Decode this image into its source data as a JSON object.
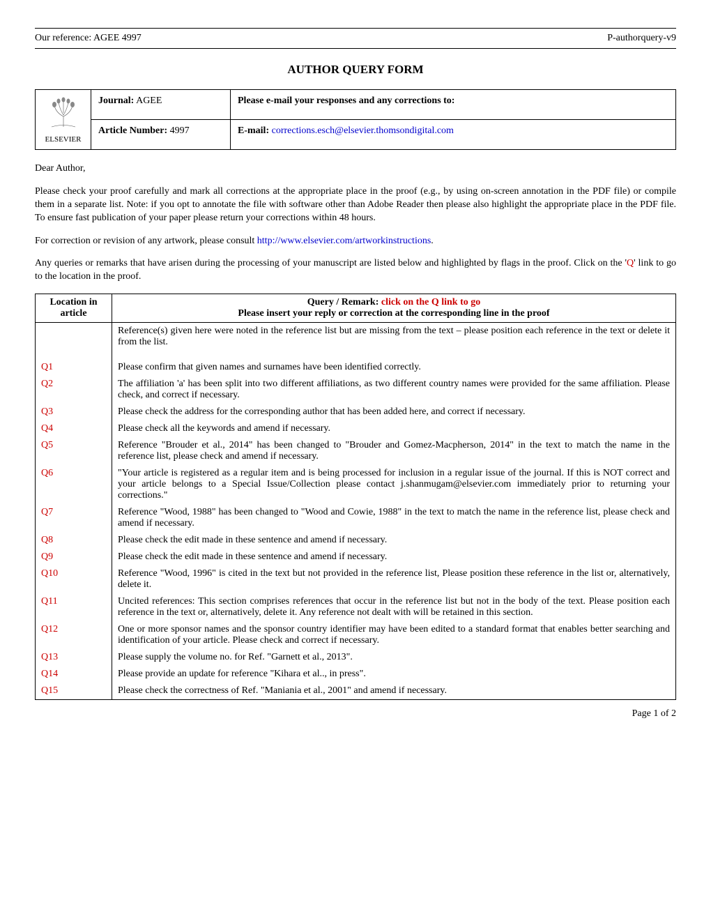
{
  "header": {
    "reference_label": "Our reference: AGEE 4997",
    "version_label": "P-authorquery-v9"
  },
  "title": "AUTHOR QUERY FORM",
  "logo_label": "ELSEVIER",
  "info_table": {
    "journal_label": "Journal:",
    "journal_value": "AGEE",
    "article_number_label": "Article Number:",
    "article_number_value": "4997",
    "response_label": "Please e-mail your responses and any corrections to:",
    "email_label": "E-mail:",
    "email_value": "corrections.esch@elsevier.thomsondigital.com"
  },
  "salutation": "Dear Author,",
  "para1": "Please check your proof carefully and mark all corrections at the appropriate place in the proof (e.g., by using on-screen annotation in the PDF file) or compile them in a separate list. Note: if you opt to annotate the file with software other than Adobe Reader then please also highlight the appropriate place in the PDF file. To ensure fast publication of your paper please return your corrections within 48 hours.",
  "para2_pre": "For correction or revision of any artwork, please consult ",
  "para2_link": "http://www.elsevier.com/artworkinstructions",
  "para2_post": ".",
  "para3_pre": "Any queries or remarks that have arisen during the processing of your manuscript are listed below and highlighted by flags in the proof. Click on the '",
  "para3_q": "Q",
  "para3_post": "' link to go to the location in the proof.",
  "query_table": {
    "header_loc_line1": "Location in",
    "header_loc_line2": "article",
    "header_query_line1_pre": "Query / Remark: ",
    "header_query_line1_red": "click on the Q link to go",
    "header_query_line2": "Please insert your reply or correction at the corresponding line in the proof",
    "rows": [
      {
        "loc": "",
        "text": "Reference(s) given here were noted in the reference list but are missing from the text – please position each reference in the text or delete it from the list."
      },
      {
        "loc": "Q1",
        "text": "Please confirm that given names and surnames have been identified correctly."
      },
      {
        "loc": "Q2",
        "text": "The affiliation 'a' has been split into two different affiliations, as two different country names were provided for the same affiliation. Please check, and correct if necessary."
      },
      {
        "loc": "Q3",
        "text": "Please check the address for the corresponding author that has been added here, and correct if necessary."
      },
      {
        "loc": "Q4",
        "text": "Please check all the keywords and amend if necessary."
      },
      {
        "loc": "Q5",
        "text": "Reference \"Brouder et al., 2014\" has been changed to \"Brouder and Gomez-Macpherson, 2014\" in the text to match the name in the reference list, please check and amend if necessary."
      },
      {
        "loc": "Q6",
        "text": "\"Your article is registered as a regular item and is being processed for inclusion in a regular issue of the journal. If this is NOT correct and your article belongs to a Special Issue/Collection please contact j.shanmugam@elsevier.com immediately prior to returning your corrections.\""
      },
      {
        "loc": "Q7",
        "text": "Reference \"Wood, 1988\" has been changed to \"Wood and Cowie, 1988\" in the text to match the name in the reference list, please check and amend if necessary."
      },
      {
        "loc": "Q8",
        "text": "Please check the edit made in these sentence and amend if necessary."
      },
      {
        "loc": "Q9",
        "text": "Please check the edit made in these sentence and amend if necessary."
      },
      {
        "loc": "Q10",
        "text": "Reference \"Wood, 1996\" is cited in the text but not provided in the reference list, Please position these reference in the list or, alternatively, delete it."
      },
      {
        "loc": "Q11",
        "text": "Uncited references: This section comprises references that occur in the reference list but not in the body of the text. Please position each reference in the text or, alternatively, delete it. Any reference not dealt with will be retained in this section."
      },
      {
        "loc": "Q12",
        "text": "One or more sponsor names and the sponsor country identifier may have been edited to a standard format that enables better searching and identification of your article. Please check and correct if necessary."
      },
      {
        "loc": "Q13",
        "text": "Please supply the volume no. for Ref. \"Garnett et al., 2013\"."
      },
      {
        "loc": "Q14",
        "text": "Please provide an update for reference \"Kihara et al.., in press\"."
      },
      {
        "loc": "Q15",
        "text": "Please check the correctness of Ref. \"Maniania et al., 2001\" and amend if necessary."
      }
    ]
  },
  "footer": "Page 1 of 2",
  "colors": {
    "link": "#0000cc",
    "red": "#cc0000",
    "border": "#000000"
  }
}
